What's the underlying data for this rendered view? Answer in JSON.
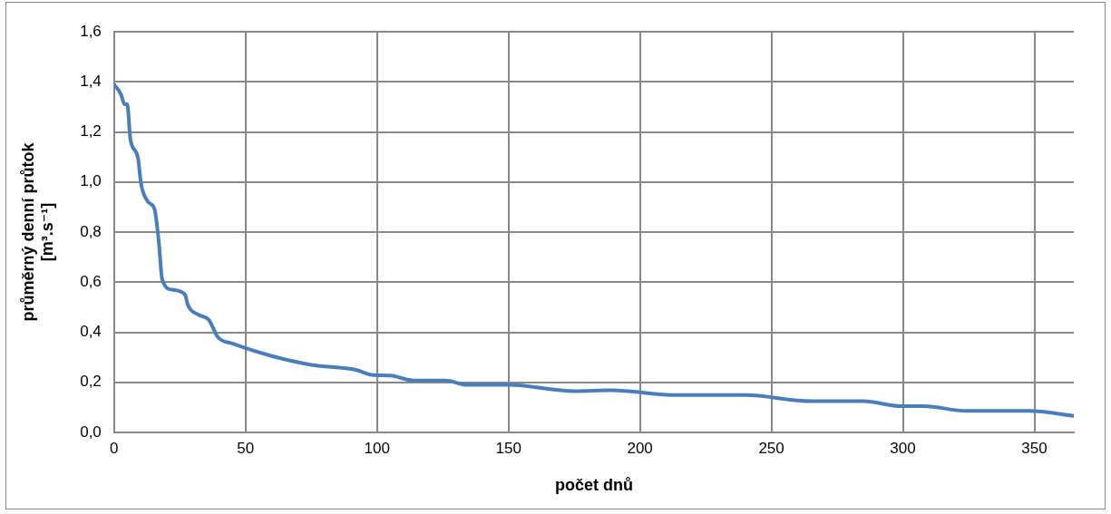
{
  "chart_data": {
    "type": "line",
    "xlabel": "počet dnů",
    "ylabel": "průměrný denní průtok\n[m³.s⁻¹]",
    "series": [
      {
        "color": "#4a7ebb",
        "x": [
          0,
          2.6,
          4,
          5,
          6.2,
          9,
          10.3,
          13,
          15.4,
          17,
          18.3,
          22,
          27,
          28,
          32,
          36,
          39.5,
          45,
          60,
          75,
          92,
          98,
          105,
          114,
          126,
          134,
          150,
          175,
          189,
          214,
          229,
          240,
          265,
          285,
          299,
          308,
          324,
          348,
          365
        ],
        "values": [
          1.39,
          1.35,
          1.31,
          1.31,
          1.17,
          1.1,
          0.99,
          0.92,
          0.89,
          0.76,
          0.61,
          0.57,
          0.55,
          0.51,
          0.47,
          0.45,
          0.38,
          0.355,
          0.305,
          0.27,
          0.25,
          0.23,
          0.227,
          0.207,
          0.207,
          0.19,
          0.19,
          0.165,
          0.168,
          0.149,
          0.149,
          0.149,
          0.125,
          0.125,
          0.105,
          0.105,
          0.086,
          0.086,
          0.066
        ]
      }
    ],
    "xlim": [
      0,
      365
    ],
    "xticks": [
      0,
      50,
      100,
      150,
      200,
      250,
      300,
      350
    ],
    "ylim": [
      0,
      1.6
    ],
    "yticks": [
      {
        "value": 0,
        "label": "0,0"
      },
      {
        "value": 0.2,
        "label": "0,2"
      },
      {
        "value": 0.4,
        "label": "0,4"
      },
      {
        "value": 0.6,
        "label": "0,6"
      },
      {
        "value": 0.8,
        "label": "0,8"
      },
      {
        "value": 1,
        "label": "1,0"
      },
      {
        "value": 1.2,
        "label": "1,2"
      },
      {
        "value": 1.4,
        "label": "1,4"
      },
      {
        "value": 1.6,
        "label": "1,6"
      }
    ],
    "grid": true,
    "legend": false,
    "marker": "none",
    "line_style": "solid"
  }
}
